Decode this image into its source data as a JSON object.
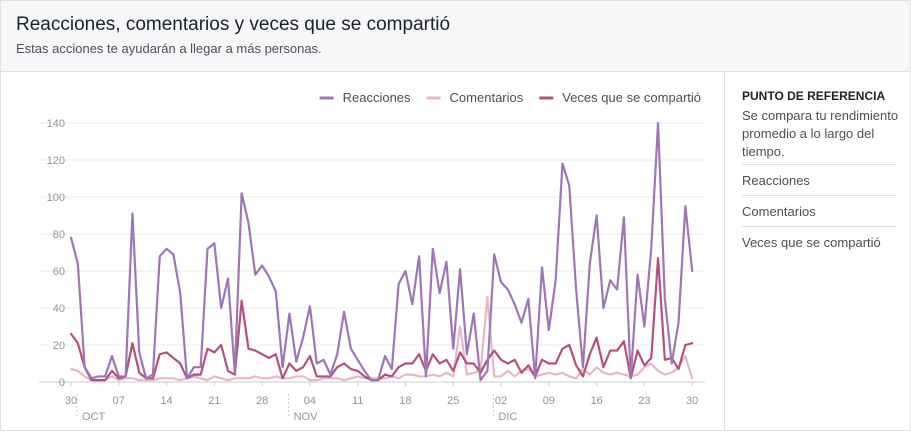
{
  "header": {
    "title": "Reacciones, comentarios y veces que se compartió",
    "subtitle": "Estas acciones te ayudarán a llegar a más personas."
  },
  "benchmark": {
    "title": "PUNTO DE REFERENCIA",
    "description": "Se compara tu rendimiento promedio a lo largo del tiempo.",
    "items": [
      "Reacciones",
      "Comentarios",
      "Veces que se compartió"
    ]
  },
  "chart_data": {
    "type": "line",
    "title": "",
    "xlabel": "",
    "ylabel": "",
    "ylim": [
      0,
      140
    ],
    "yticks": [
      0,
      20,
      40,
      60,
      80,
      100,
      120,
      140
    ],
    "grid": true,
    "legend": "top-right",
    "x_day_range": [
      0,
      92
    ],
    "x_ticks": [
      {
        "day": 0,
        "label": "30"
      },
      {
        "day": 7,
        "label": "07"
      },
      {
        "day": 14,
        "label": "14"
      },
      {
        "day": 21,
        "label": "21"
      },
      {
        "day": 28,
        "label": "28"
      },
      {
        "day": 35,
        "label": "04"
      },
      {
        "day": 42,
        "label": "11"
      },
      {
        "day": 49,
        "label": "18"
      },
      {
        "day": 56,
        "label": "25"
      },
      {
        "day": 63,
        "label": "02"
      },
      {
        "day": 70,
        "label": "09"
      },
      {
        "day": 77,
        "label": "16"
      },
      {
        "day": 84,
        "label": "23"
      },
      {
        "day": 91,
        "label": "30"
      }
    ],
    "month_labels": [
      {
        "day": 1,
        "label": "OCT"
      },
      {
        "day": 32,
        "label": "NOV"
      },
      {
        "day": 62,
        "label": "DIC"
      }
    ],
    "series": [
      {
        "name": "Reacciones",
        "color": "#9e76b4",
        "values": [
          78,
          64,
          8,
          2,
          3,
          3,
          14,
          3,
          3,
          91,
          16,
          2,
          4,
          68,
          72,
          69,
          48,
          2,
          8,
          8,
          72,
          75,
          40,
          56,
          5,
          102,
          86,
          58,
          63,
          57,
          49,
          8,
          37,
          11,
          24,
          41,
          10,
          12,
          4,
          15,
          38,
          18,
          12,
          6,
          1,
          1,
          14,
          7,
          53,
          60,
          42,
          68,
          3,
          72,
          48,
          65,
          18,
          61,
          15,
          37,
          1,
          6,
          69,
          54,
          50,
          42,
          32,
          45,
          2,
          62,
          28,
          55,
          118,
          106,
          50,
          8,
          64,
          90,
          40,
          55,
          50,
          89,
          2,
          58,
          30,
          72,
          140,
          45,
          10,
          32,
          95,
          60
        ]
      },
      {
        "name": "Comentarios",
        "color": "#e5b8c8",
        "values": [
          7,
          6,
          3,
          1,
          1,
          1,
          3,
          1,
          2,
          2,
          1,
          1,
          1,
          2,
          2,
          2,
          1,
          2,
          3,
          2,
          1,
          3,
          2,
          1,
          2,
          2,
          2,
          3,
          2,
          2,
          3,
          2,
          2,
          3,
          3,
          1,
          1,
          2,
          2,
          2,
          1,
          2,
          3,
          2,
          2,
          2,
          2,
          3,
          2,
          4,
          4,
          3,
          3,
          4,
          3,
          5,
          3,
          30,
          4,
          5,
          6,
          46,
          3,
          3,
          6,
          3,
          6,
          7,
          3,
          4,
          5,
          4,
          5,
          3,
          2,
          7,
          4,
          8,
          5,
          4,
          5,
          4,
          3,
          4,
          8,
          10,
          6,
          4,
          5,
          8,
          14,
          2
        ]
      },
      {
        "name": "Veces que se compartió",
        "color": "#b4507f",
        "values": [
          26,
          21,
          8,
          1,
          1,
          1,
          6,
          2,
          3,
          21,
          5,
          2,
          2,
          15,
          16,
          13,
          10,
          2,
          4,
          4,
          18,
          16,
          20,
          6,
          4,
          44,
          18,
          17,
          15,
          13,
          15,
          2,
          10,
          6,
          8,
          14,
          3,
          3,
          3,
          8,
          10,
          7,
          6,
          3,
          1,
          1,
          4,
          3,
          8,
          10,
          10,
          15,
          6,
          15,
          10,
          12,
          6,
          16,
          10,
          10,
          5,
          12,
          17,
          12,
          10,
          12,
          5,
          9,
          3,
          12,
          10,
          10,
          18,
          20,
          9,
          3,
          15,
          24,
          8,
          17,
          17,
          22,
          2,
          17,
          9,
          13,
          67,
          12,
          13,
          7,
          20,
          21
        ]
      }
    ]
  }
}
